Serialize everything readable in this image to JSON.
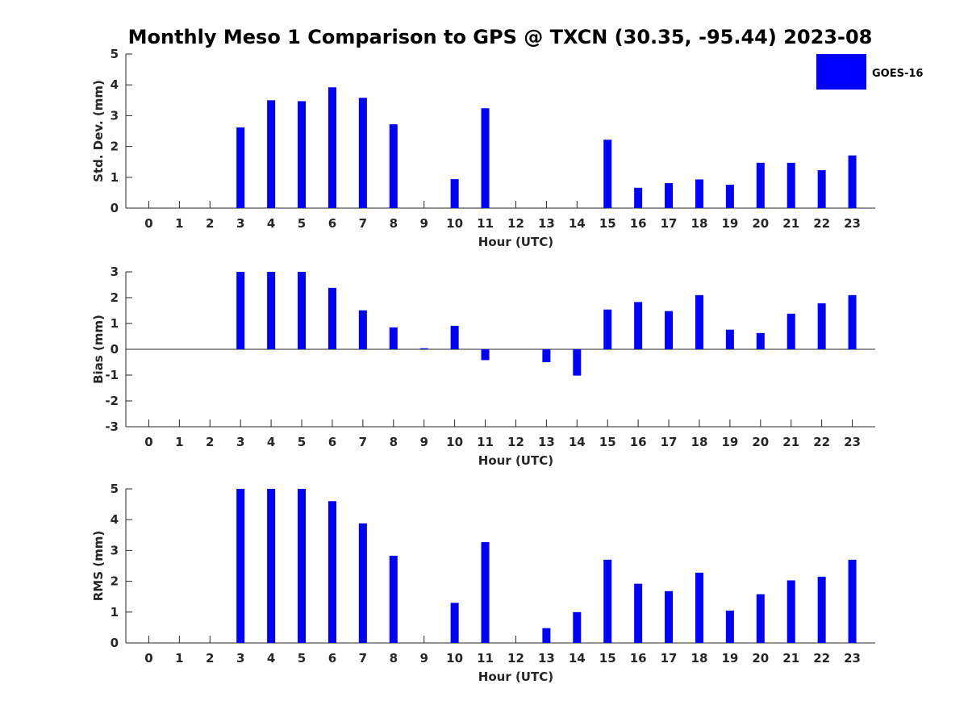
{
  "chart_data": {
    "title": "Monthly Meso 1 Comparison to GPS @ TXCN (30.35, -95.44) 2023-08",
    "series_name": "GOES-16",
    "bar_color": "#0000ff",
    "categories": [
      "0",
      "1",
      "2",
      "3",
      "4",
      "5",
      "6",
      "7",
      "8",
      "9",
      "10",
      "11",
      "12",
      "13",
      "14",
      "15",
      "16",
      "17",
      "18",
      "19",
      "20",
      "21",
      "22",
      "23"
    ],
    "panels": [
      {
        "type": "bar",
        "xlabel": "Hour (UTC)",
        "ylabel": "Std. Dev. (mm)",
        "ylim": [
          0,
          5
        ],
        "yticks": [
          "0",
          "1",
          "2",
          "3",
          "4",
          "5"
        ],
        "values": [
          null,
          null,
          null,
          2.62,
          3.5,
          3.47,
          3.92,
          3.58,
          2.72,
          null,
          0.94,
          3.24,
          null,
          null,
          null,
          2.22,
          0.66,
          0.81,
          0.93,
          0.76,
          1.47,
          1.47,
          1.23,
          1.71
        ]
      },
      {
        "type": "bar",
        "xlabel": "Hour (UTC)",
        "ylabel": "Bias (mm)",
        "ylim": [
          -3,
          3
        ],
        "yticks": [
          "-3",
          "-2",
          "-1",
          "0",
          "1",
          "2",
          "3"
        ],
        "values": [
          null,
          null,
          null,
          3.0,
          3.0,
          3.0,
          2.38,
          1.51,
          0.85,
          0.04,
          0.91,
          -0.42,
          null,
          -0.5,
          -1.02,
          1.54,
          1.83,
          1.48,
          2.1,
          0.76,
          0.63,
          1.38,
          1.78,
          2.1
        ]
      },
      {
        "type": "bar",
        "xlabel": "Hour (UTC)",
        "ylabel": "RMS (mm)",
        "ylim": [
          0,
          5
        ],
        "yticks": [
          "0",
          "1",
          "2",
          "3",
          "4",
          "5"
        ],
        "values": [
          null,
          null,
          null,
          5.0,
          5.0,
          5.0,
          4.6,
          3.88,
          2.83,
          null,
          1.3,
          3.27,
          null,
          0.48,
          1.0,
          2.7,
          1.92,
          1.68,
          2.28,
          1.05,
          1.58,
          2.03,
          2.15,
          2.7
        ]
      }
    ]
  }
}
